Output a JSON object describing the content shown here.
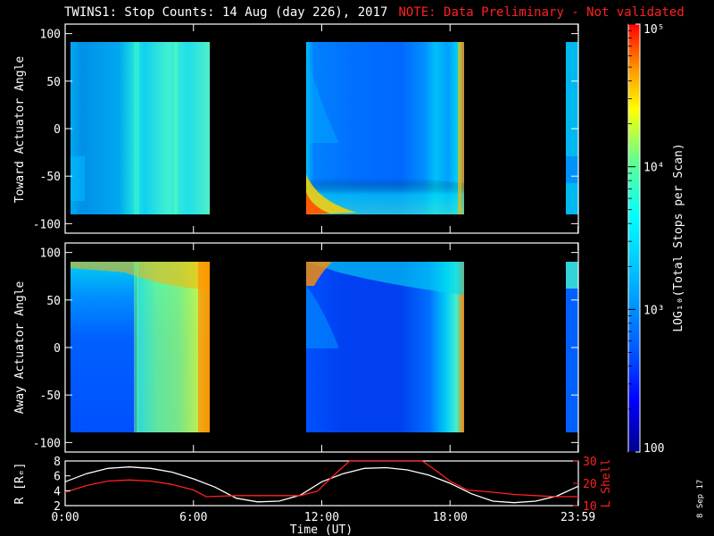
{
  "title": "TWINS1: Stop Counts: 14 Aug (day 226), 2017",
  "note": "NOTE: Data Preliminary - Not validated",
  "date_stamp": "8 Sep 17",
  "chart_data": [
    {
      "type": "heatmap",
      "panel": "toward",
      "ylabel": "Toward Actuator Angle",
      "ylim": [
        -110,
        110
      ],
      "yticks": [
        -100,
        -50,
        0,
        50,
        100
      ],
      "xlim_hours": [
        0,
        24
      ],
      "data_segments_hours": [
        [
          0.0,
          6.8
        ],
        [
          11.2,
          18.7
        ],
        [
          23.8,
          24.0
        ]
      ],
      "angle_range": [
        -90,
        90
      ]
    },
    {
      "type": "heatmap",
      "panel": "away",
      "ylabel": "Away Actuator Angle",
      "ylim": [
        -110,
        110
      ],
      "yticks": [
        -100,
        -50,
        0,
        50,
        100
      ],
      "xlim_hours": [
        0,
        24
      ],
      "data_segments_hours": [
        [
          0.0,
          6.8
        ],
        [
          11.2,
          18.7
        ],
        [
          23.8,
          24.0
        ]
      ],
      "angle_range": [
        -90,
        90
      ]
    },
    {
      "type": "line",
      "panel": "orbit",
      "ylabel_left": "R [Rₑ]",
      "ylabel_right": "L Shell",
      "xlabel": "Time (UT)",
      "xtick_labels": [
        "0:00",
        "6:00",
        "12:00",
        "18:00",
        "23:59"
      ],
      "xtick_hours": [
        0,
        6,
        12,
        18,
        23.983
      ],
      "ylim_left": [
        2,
        8
      ],
      "yticks_left": [
        2,
        4,
        6,
        8
      ],
      "ylim_right": [
        10,
        30
      ],
      "yticks_right": [
        10,
        20,
        30
      ],
      "series": [
        {
          "name": "R",
          "color": "#ffffff",
          "x": [
            0,
            1,
            2,
            3,
            4,
            5,
            6,
            7,
            8,
            9,
            10,
            11,
            12,
            13,
            14,
            15,
            16,
            17,
            18,
            19,
            20,
            21,
            22,
            23,
            24
          ],
          "y": [
            5.2,
            6.3,
            7.0,
            7.2,
            7.0,
            6.5,
            5.6,
            4.5,
            3.0,
            2.5,
            2.6,
            3.4,
            5.2,
            6.3,
            7.0,
            7.1,
            6.8,
            6.1,
            5.0,
            3.6,
            2.6,
            2.4,
            2.6,
            3.3,
            4.6
          ]
        },
        {
          "name": "L Shell",
          "color": "#ff2020",
          "x": [
            0,
            1,
            2,
            3,
            4,
            5,
            6,
            6.6,
            8,
            9,
            10,
            11,
            11.8,
            12.5,
            13.3,
            16.7,
            17.3,
            18,
            18.8,
            20,
            21,
            22,
            23,
            24
          ],
          "y": [
            16,
            19,
            21,
            21.5,
            21,
            19.5,
            17,
            14,
            14.5,
            14.5,
            14.5,
            14.5,
            16.5,
            23,
            31,
            31,
            26,
            21,
            17,
            16,
            15,
            14.5,
            14,
            14
          ]
        }
      ]
    },
    {
      "type": "colorbar",
      "label": "LOG₁₀(Total Stops per Scan)",
      "scale": "log",
      "range": [
        100,
        100000
      ],
      "tick_labels": [
        "10⁵",
        "10⁴",
        "10³",
        "100"
      ],
      "colors": [
        "#00008c",
        "#0000ff",
        "#0060ff",
        "#00b4ff",
        "#00ffff",
        "#60ff90",
        "#ffff00",
        "#ff9000",
        "#ff0000"
      ]
    }
  ]
}
